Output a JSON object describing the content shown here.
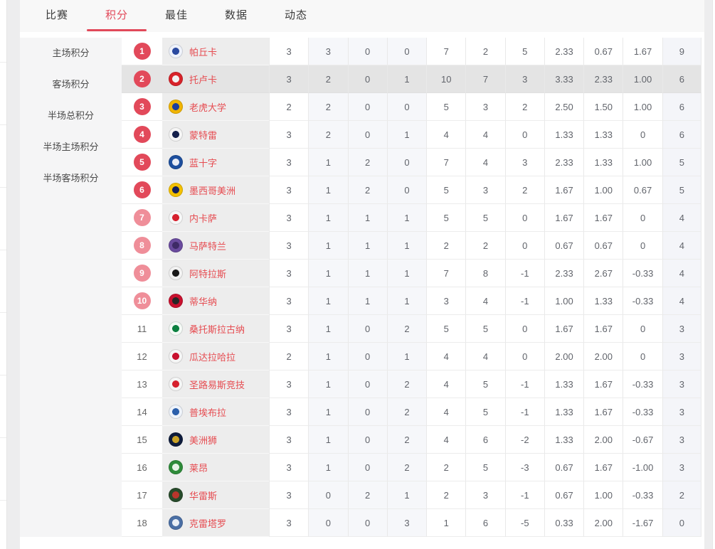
{
  "colors": {
    "accent": "#e2495a",
    "accent_light_badge": "#ef8e99",
    "team_link": "#e64c51",
    "row_highlight": "#e4e4e4",
    "tinted_column_bg": "#f6f7fa",
    "sidebar_bg": "#f5f5f6"
  },
  "tabs": {
    "items": [
      {
        "id": "matches",
        "label": "比赛",
        "active": false
      },
      {
        "id": "standings",
        "label": "积分",
        "active": true
      },
      {
        "id": "best",
        "label": "最佳",
        "active": false
      },
      {
        "id": "stats",
        "label": "数据",
        "active": false
      },
      {
        "id": "news",
        "label": "动态",
        "active": false
      }
    ]
  },
  "sidebar": {
    "items": [
      {
        "id": "home-points",
        "label": "主场积分"
      },
      {
        "id": "away-points",
        "label": "客场积分"
      },
      {
        "id": "half-total-points",
        "label": "半场总积分"
      },
      {
        "id": "half-home-points",
        "label": "半场主场积分"
      },
      {
        "id": "half-away-points",
        "label": "半场客场积分"
      }
    ]
  },
  "standings": {
    "stat_column_ids": [
      "played",
      "wins",
      "draws",
      "losses",
      "goals-for",
      "goals-against",
      "goal-diff",
      "avg-goals-for",
      "avg-goals-against",
      "avg-goal-diff",
      "points"
    ],
    "tinted_stat_columns": [
      1,
      2,
      3
    ],
    "points_column": 10,
    "rows": [
      {
        "rank": 1,
        "team": "帕丘卡",
        "logo_colors": [
          "#eef2fb",
          "#2b4aa0"
        ],
        "highlighted": false,
        "stats": [
          "3",
          "3",
          "0",
          "0",
          "7",
          "2",
          "5",
          "2.33",
          "0.67",
          "1.67",
          "9"
        ]
      },
      {
        "rank": 2,
        "team": "托卢卡",
        "logo_colors": [
          "#d8232a",
          "#f2f2f2"
        ],
        "highlighted": true,
        "stats": [
          "3",
          "2",
          "0",
          "1",
          "10",
          "7",
          "3",
          "3.33",
          "2.33",
          "1.00",
          "6"
        ]
      },
      {
        "rank": 3,
        "team": "老虎大学",
        "logo_colors": [
          "#f0b400",
          "#1d3e9e"
        ],
        "highlighted": false,
        "stats": [
          "2",
          "2",
          "0",
          "0",
          "5",
          "3",
          "2",
          "2.50",
          "1.50",
          "1.00",
          "6"
        ]
      },
      {
        "rank": 4,
        "team": "蒙特雷",
        "logo_colors": [
          "#f5f5f5",
          "#14204c"
        ],
        "highlighted": false,
        "stats": [
          "3",
          "2",
          "0",
          "1",
          "4",
          "4",
          "0",
          "1.33",
          "1.33",
          "0",
          "6"
        ]
      },
      {
        "rank": 5,
        "team": "蓝十字",
        "logo_colors": [
          "#1d4f9e",
          "#e8ecf5"
        ],
        "highlighted": false,
        "stats": [
          "3",
          "1",
          "2",
          "0",
          "7",
          "4",
          "3",
          "2.33",
          "1.33",
          "1.00",
          "5"
        ]
      },
      {
        "rank": 6,
        "team": "墨西哥美洲",
        "logo_colors": [
          "#f3c000",
          "#13205c"
        ],
        "highlighted": false,
        "stats": [
          "3",
          "1",
          "2",
          "0",
          "5",
          "3",
          "2",
          "1.67",
          "1.00",
          "0.67",
          "5"
        ]
      },
      {
        "rank": 7,
        "team": "内卡萨",
        "logo_colors": [
          "#f7f7f7",
          "#d6212e"
        ],
        "highlighted": false,
        "stats": [
          "3",
          "1",
          "1",
          "1",
          "5",
          "5",
          "0",
          "1.67",
          "1.67",
          "0",
          "4"
        ]
      },
      {
        "rank": 8,
        "team": "马萨特兰",
        "logo_colors": [
          "#6a4b9e",
          "#3e2a66"
        ],
        "highlighted": false,
        "stats": [
          "3",
          "1",
          "1",
          "1",
          "2",
          "2",
          "0",
          "0.67",
          "0.67",
          "0",
          "4"
        ]
      },
      {
        "rank": 9,
        "team": "阿特拉斯",
        "logo_colors": [
          "#f2f2f2",
          "#1a1a1a"
        ],
        "highlighted": false,
        "stats": [
          "3",
          "1",
          "1",
          "1",
          "7",
          "8",
          "-1",
          "2.33",
          "2.67",
          "-0.33",
          "4"
        ]
      },
      {
        "rank": 10,
        "team": "蒂华纳",
        "logo_colors": [
          "#c8102e",
          "#262626"
        ],
        "highlighted": false,
        "stats": [
          "3",
          "1",
          "1",
          "1",
          "3",
          "4",
          "-1",
          "1.00",
          "1.33",
          "-0.33",
          "4"
        ]
      },
      {
        "rank": 11,
        "team": "桑托斯拉古纳",
        "logo_colors": [
          "#f4faf6",
          "#0c8040"
        ],
        "highlighted": false,
        "stats": [
          "3",
          "1",
          "0",
          "2",
          "5",
          "5",
          "0",
          "1.67",
          "1.67",
          "0",
          "3"
        ]
      },
      {
        "rank": 12,
        "team": "瓜达拉哈拉",
        "logo_colors": [
          "#f5f5f5",
          "#c8102e"
        ],
        "highlighted": false,
        "stats": [
          "2",
          "1",
          "0",
          "1",
          "4",
          "4",
          "0",
          "2.00",
          "2.00",
          "0",
          "3"
        ]
      },
      {
        "rank": 13,
        "team": "圣路易斯竞技",
        "logo_colors": [
          "#f5f5f5",
          "#d6212e"
        ],
        "highlighted": false,
        "stats": [
          "3",
          "1",
          "0",
          "2",
          "4",
          "5",
          "-1",
          "1.33",
          "1.67",
          "-0.33",
          "3"
        ]
      },
      {
        "rank": 14,
        "team": "普埃布拉",
        "logo_colors": [
          "#eef3fa",
          "#2b5fab"
        ],
        "highlighted": false,
        "stats": [
          "3",
          "1",
          "0",
          "2",
          "4",
          "5",
          "-1",
          "1.33",
          "1.67",
          "-0.33",
          "3"
        ]
      },
      {
        "rank": 15,
        "team": "美洲狮",
        "logo_colors": [
          "#0e1c3c",
          "#c9a227"
        ],
        "highlighted": false,
        "stats": [
          "3",
          "1",
          "0",
          "2",
          "4",
          "6",
          "-2",
          "1.33",
          "2.00",
          "-0.67",
          "3"
        ]
      },
      {
        "rank": 16,
        "team": "莱昂",
        "logo_colors": [
          "#2e8b3a",
          "#e8f3e8"
        ],
        "highlighted": false,
        "stats": [
          "3",
          "1",
          "0",
          "2",
          "2",
          "5",
          "-3",
          "0.67",
          "1.67",
          "-1.00",
          "3"
        ]
      },
      {
        "rank": 17,
        "team": "华雷斯",
        "logo_colors": [
          "#274a2a",
          "#b8352c"
        ],
        "highlighted": false,
        "stats": [
          "3",
          "0",
          "2",
          "1",
          "2",
          "3",
          "-1",
          "0.67",
          "1.00",
          "-0.33",
          "2"
        ]
      },
      {
        "rank": 18,
        "team": "克雷塔罗",
        "logo_colors": [
          "#4a6fa5",
          "#e8eef5"
        ],
        "highlighted": false,
        "stats": [
          "3",
          "0",
          "0",
          "3",
          "1",
          "6",
          "-5",
          "0.33",
          "2.00",
          "-1.67",
          "0"
        ]
      }
    ]
  }
}
